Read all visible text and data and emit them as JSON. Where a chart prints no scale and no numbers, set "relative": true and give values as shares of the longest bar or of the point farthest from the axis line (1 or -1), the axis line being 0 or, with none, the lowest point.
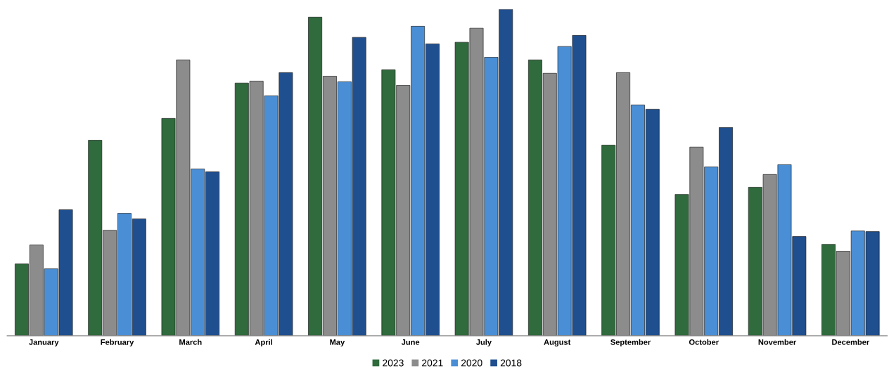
{
  "chart_data": {
    "type": "bar",
    "relative": true,
    "legend": "bottom",
    "grid": false,
    "categories": [
      "January",
      "February",
      "March",
      "April",
      "May",
      "June",
      "July",
      "August",
      "September",
      "October",
      "November",
      "December"
    ],
    "series": [
      {
        "name": "2023",
        "color": "#2f6b3c",
        "values": [
          0.22,
          0.599,
          0.666,
          0.774,
          0.976,
          0.815,
          0.899,
          0.845,
          0.584,
          0.433,
          0.455,
          0.28
        ]
      },
      {
        "name": "2021",
        "color": "#8c8c8c",
        "values": [
          0.278,
          0.323,
          0.845,
          0.78,
          0.795,
          0.767,
          0.942,
          0.804,
          0.806,
          0.578,
          0.494,
          0.259
        ]
      },
      {
        "name": "2020",
        "color": "#4a8fd6",
        "values": [
          0.205,
          0.375,
          0.511,
          0.735,
          0.778,
          0.948,
          0.853,
          0.886,
          0.707,
          0.517,
          0.524,
          0.321
        ]
      },
      {
        "name": "2018",
        "color": "#1f4f8f",
        "values": [
          0.386,
          0.358,
          0.502,
          0.806,
          0.914,
          0.894,
          1,
          0.92,
          0.694,
          0.638,
          0.304,
          0.319
        ]
      }
    ]
  }
}
